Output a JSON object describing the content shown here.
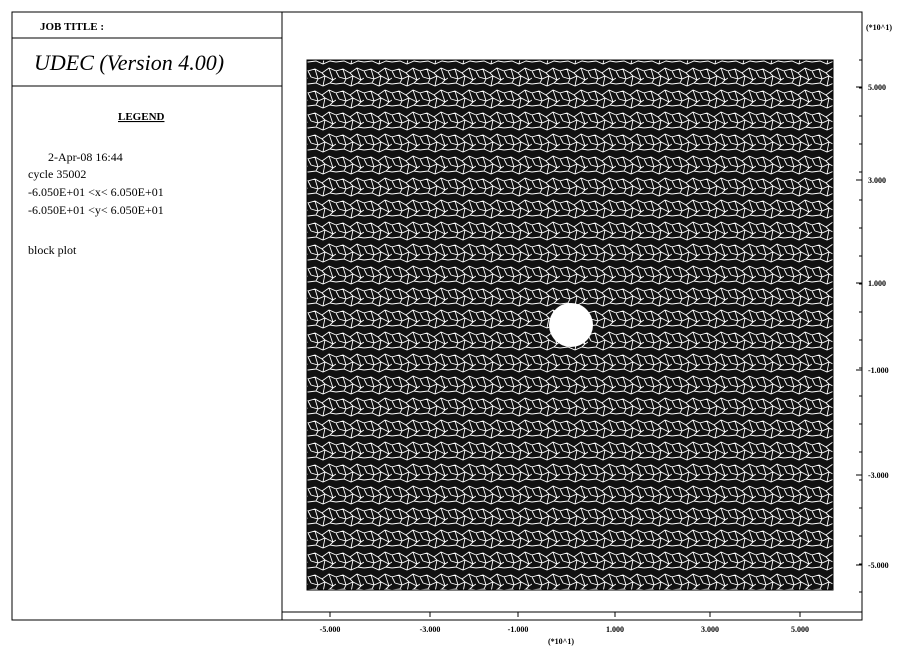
{
  "header": {
    "job_title": "JOB TITLE :",
    "program": "UDEC (Version 4.00)"
  },
  "legend": {
    "title": "LEGEND",
    "date": "2-Apr-08  16:44",
    "cycle": "cycle  35002",
    "x_range": "-6.050E+01 <x<  6.050E+01",
    "y_range": "-6.050E+01 <y<  6.050E+01",
    "plot_name": "block plot"
  },
  "plot": {
    "y_scale": "(*10^1)",
    "x_scale": "(*10^1)",
    "y_ticks": [
      "5.000",
      "3.000",
      "1.000",
      "-1.000",
      "-3.000",
      "-5.000"
    ],
    "x_ticks": [
      "-5.000",
      "-3.000",
      "-1.000",
      "1.000",
      "3.000",
      "5.000"
    ]
  }
}
